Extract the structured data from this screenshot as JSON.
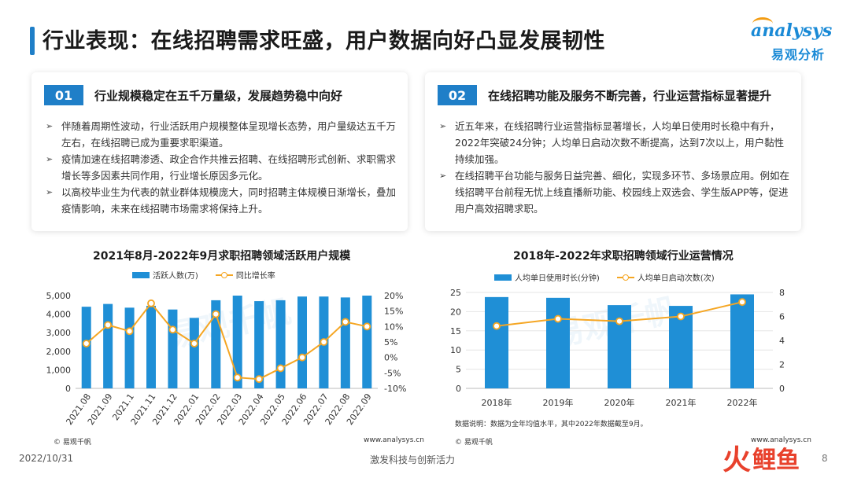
{
  "title": "行业表现：在线招聘需求旺盛，用户数据向好凸显发展韧性",
  "logo": {
    "en": "analysys",
    "zh": "易观分析"
  },
  "cards": [
    {
      "num": "01",
      "title": "行业规模稳定在五千万量级，发展趋势稳中向好",
      "items": [
        "伴随着周期性波动，行业活跃用户规模整体呈现增长态势，用户量级达五千万左右，在线招聘已成为重要求职渠道。",
        "疫情加速在线招聘渗透、政企合作共推云招聘、在线招聘形式创新、求职需求增长等多因素共同作用，行业增长原因多元化。",
        "以高校毕业生为代表的就业群体规模庞大，同时招聘主体规模日渐增长，叠加疫情影响，未来在线招聘市场需求将保持上升。"
      ]
    },
    {
      "num": "02",
      "title": "在线招聘功能及服务不断完善，行业运营指标显著提升",
      "items": [
        "近五年来，在线招聘行业运营指标显著增长，人均单日使用时长稳中有升，2022年突破24分钟；人均单日启动次数不断提高，达到7次以上，用户黏性持续加强。",
        "在线招聘平台功能与服务日益完善、细化，实现多环节、多场景应用。例如在线招聘平台前程无忧上线直播新功能、校园线上双选会、学生版APP等，促进用户高效招聘求职。"
      ]
    }
  ],
  "bullet_glyph": "➢",
  "chart_left": {
    "type": "bar",
    "title": "2021年8月-2022年9月求职招聘领域活跃用户规模",
    "legend": [
      "活跃人数(万)",
      "同比增长率"
    ],
    "categories": [
      "2021.08",
      "2021.09",
      "2021.1",
      "2021.11",
      "2021.12",
      "2022.01",
      "2022.02",
      "2022.03",
      "2022.04",
      "2022.05",
      "2022.06",
      "2022.07",
      "2022.08",
      "2022.09"
    ],
    "series": [
      {
        "name": "活跃人数(万)",
        "type": "bar",
        "axis": "left",
        "values": [
          4400,
          4550,
          4350,
          4450,
          4250,
          3800,
          4750,
          5000,
          4700,
          4750,
          4950,
          4950,
          4900,
          5000
        ]
      },
      {
        "name": "同比增长率",
        "type": "line",
        "axis": "right",
        "values": [
          4.5,
          10.5,
          8.5,
          17.5,
          9,
          4.5,
          14,
          -6.5,
          -7,
          -3.5,
          0,
          5,
          11.5,
          10
        ]
      }
    ],
    "ylim_left": [
      0,
      5000
    ],
    "yticks_left": [
      "0",
      "1,000",
      "2,000",
      "3,000",
      "4,000",
      "5,000"
    ],
    "ylim_right": [
      -10,
      20
    ],
    "yticks_right": [
      "-10%",
      "-5%",
      "0%",
      "5%",
      "10%",
      "15%",
      "20%"
    ],
    "source": "© 易观千帆",
    "url": "www.analysys.cn"
  },
  "chart_right": {
    "type": "bar",
    "title": "2018年-2022年求职招聘领域行业运营情况",
    "legend": [
      "人均单日使用时长(分钟)",
      "人均单日启动次数(次)"
    ],
    "categories": [
      "2018年",
      "2019年",
      "2020年",
      "2021年",
      "2022年"
    ],
    "series": [
      {
        "name": "人均单日使用时长(分钟)",
        "type": "bar",
        "axis": "left",
        "values": [
          23.8,
          23.6,
          21.7,
          21.5,
          24.5
        ]
      },
      {
        "name": "人均单日启动次数(次)",
        "type": "line",
        "axis": "right",
        "values": [
          5.2,
          5.8,
          5.6,
          6.0,
          7.2
        ]
      }
    ],
    "ylim_left": [
      0,
      25
    ],
    "yticks_left": [
      "0",
      "5",
      "10",
      "15",
      "20",
      "25"
    ],
    "ylim_right": [
      0,
      8
    ],
    "yticks_right": [
      "0",
      "2",
      "4",
      "6",
      "8"
    ],
    "note": "数据说明：数据为全年均值水平，其中2022年数据截至9月。",
    "source": "© 易观千帆",
    "url": "www.analysys.cn"
  },
  "footer": {
    "date": "2022/10/31",
    "slogan": "激发科技与创新活力",
    "page": "8"
  },
  "watermark": {
    "left": "易观千帆",
    "right": "易观千帆"
  },
  "corner_logo": {
    "fire": "火",
    "fish": "鲤鱼"
  },
  "colors": {
    "accent": "#1f7fc8",
    "bar": "#1f8fd6",
    "line": "#f5a623"
  }
}
